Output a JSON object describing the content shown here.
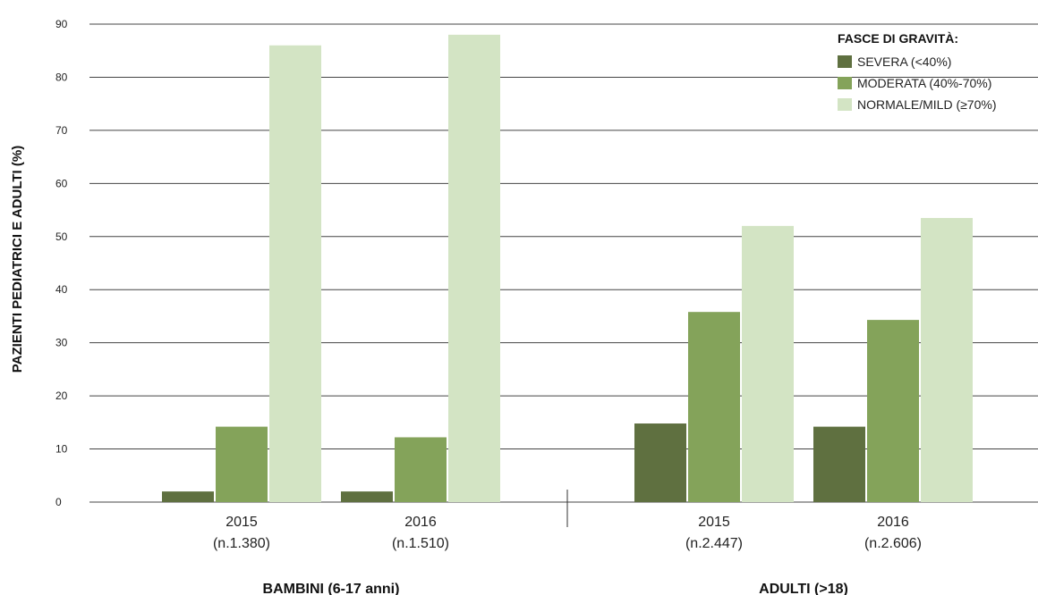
{
  "chart_data": {
    "type": "bar",
    "ylabel": "PAZIENTI PEDIATRICI E ADULTI (%)",
    "ylim": [
      0,
      90
    ],
    "yticks": [
      0,
      10,
      20,
      30,
      40,
      50,
      60,
      70,
      80,
      90
    ],
    "grid": true,
    "legend_placement": "top-right",
    "legend_title": "FASCE DI GRAVITÀ:",
    "groups": [
      {
        "label": "BAMBINI (6-17 anni)",
        "categories": [
          {
            "year": "2015",
            "n": "(n.1.380)"
          },
          {
            "year": "2016",
            "n": "(n.1.510)"
          }
        ]
      },
      {
        "label": "ADULTI (>18)",
        "categories": [
          {
            "year": "2015",
            "n": "(n.2.447)"
          },
          {
            "year": "2016",
            "n": "(n.2.606)"
          }
        ]
      }
    ],
    "series": [
      {
        "name": "SEVERA (<40%)",
        "color": "#5f7040",
        "values": [
          2,
          2,
          14.8,
          14.2
        ]
      },
      {
        "name": "MODERATA (40%-70%)",
        "color": "#84a35a",
        "values": [
          14.2,
          12.2,
          35.8,
          34.3
        ]
      },
      {
        "name": "NORMALE/MILD (≥70%)",
        "color": "#d3e4c4",
        "values": [
          86,
          88,
          52,
          53.5
        ]
      }
    ]
  }
}
